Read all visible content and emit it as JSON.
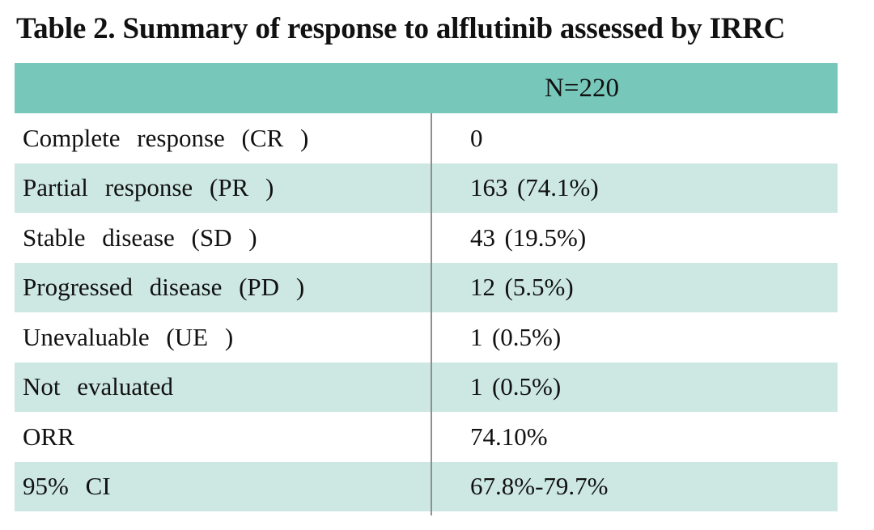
{
  "title": "Table 2. Summary of response to alflutinib assessed by IRRC",
  "table": {
    "header": "N=220",
    "rows": [
      {
        "label": "Complete response (CR )",
        "value": "0"
      },
      {
        "label": "Partial response (PR )",
        "value": "163 (74.1%)"
      },
      {
        "label": "Stable disease (SD )",
        "value": "43 (19.5%)"
      },
      {
        "label": "Progressed disease (PD )",
        "value": "12 (5.5%)"
      },
      {
        "label": "Unevaluable (UE )",
        "value": "1 (0.5%)"
      },
      {
        "label": "Not evaluated",
        "value": "1 (0.5%)"
      },
      {
        "label": "ORR",
        "value": "74.10%"
      },
      {
        "label": "95% CI",
        "value": "67.8%-79.7%"
      }
    ],
    "colors": {
      "header_bg": "#77c8ba",
      "row_alt_bg": "#cde8e2",
      "divider": "#8f8f8f"
    }
  }
}
